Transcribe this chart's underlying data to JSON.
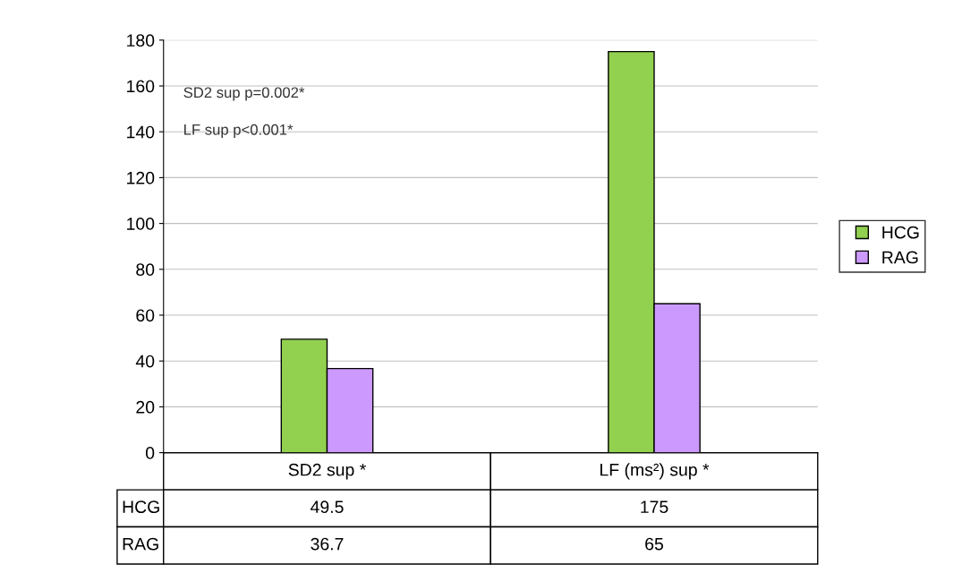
{
  "chart_data": {
    "type": "bar",
    "categories": [
      "SD2 sup *",
      "LF (ms²) sup *"
    ],
    "series": [
      {
        "name": "HCG",
        "color": "#92d050",
        "values": [
          49.5,
          175
        ]
      },
      {
        "name": "RAG",
        "color": "#cc99ff",
        "values": [
          36.7,
          65
        ]
      }
    ],
    "ylim": [
      0,
      180
    ],
    "yticks": [
      0,
      20,
      40,
      60,
      80,
      100,
      120,
      140,
      160,
      180
    ],
    "grid": "y",
    "legend": "right",
    "data_labels": true,
    "annotations": [
      "SD2 sup p=0.002*",
      "LF sup p<0.001*"
    ]
  }
}
